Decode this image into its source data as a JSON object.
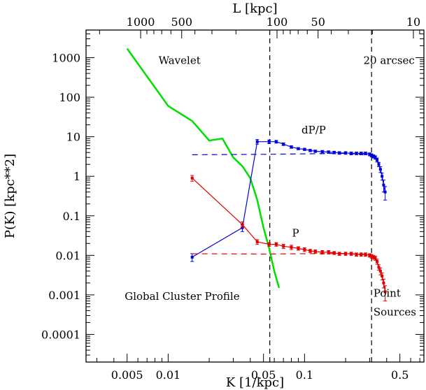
{
  "chart_data": {
    "type": "line",
    "xlabel": "K [1/kpc]",
    "ylabel": "P(K) [kpc**2]",
    "top_xlabel": "L [kpc]",
    "x_scale": "log",
    "y_scale": "log",
    "xlim": [
      0.0025,
      0.75
    ],
    "ylim": [
      2e-05,
      5000
    ],
    "x_ticks": [
      0.005,
      0.01,
      0.05,
      0.1,
      0.5
    ],
    "x_tick_labels": [
      "0.005",
      "0.01",
      "0.05",
      "0.1",
      "0.5"
    ],
    "y_ticks": [
      0.0001,
      0.001,
      0.01,
      0.1,
      1,
      10,
      100,
      1000
    ],
    "y_tick_labels": [
      "0.0001",
      "0.001",
      "0.01",
      "0.1",
      "1",
      "10",
      "100",
      "1000"
    ],
    "top_ticks": [
      1000,
      500,
      100,
      50,
      10
    ],
    "top_tick_labels": [
      "1000",
      "500",
      "100",
      "50",
      "10"
    ],
    "vlines": [
      0.0556,
      0.31
    ],
    "annotations": [
      {
        "text": "Wavelet",
        "x": 0.0085,
        "y": 700
      },
      {
        "text": "20 arcsec",
        "x": 0.27,
        "y": 700
      },
      {
        "text": "dP/P",
        "x": 0.095,
        "y": 12
      },
      {
        "text": "P",
        "x": 0.081,
        "y": 0.03
      },
      {
        "text": "Global Cluster Profile",
        "x": 0.0048,
        "y": 0.00075
      },
      {
        "text": "Point",
        "x": 0.32,
        "y": 0.0009
      },
      {
        "text": "Sources",
        "x": 0.32,
        "y": 0.0003
      }
    ],
    "series": [
      {
        "color": "#00e000",
        "style": "solid",
        "errorbars": false,
        "x": [
          0.005,
          0.01,
          0.015,
          0.02,
          0.025,
          0.03,
          0.035,
          0.04,
          0.045,
          0.05,
          0.055,
          0.06,
          0.065
        ],
        "y": [
          1700,
          60,
          25,
          8,
          9,
          3,
          1.8,
          0.9,
          0.25,
          0.05,
          0.015,
          0.004,
          0.0015
        ]
      },
      {
        "color": "#0000dd",
        "style": "solid",
        "errorbars": true,
        "x": [
          0.015,
          0.035,
          0.045,
          0.055,
          0.062,
          0.07,
          0.08,
          0.09,
          0.1,
          0.11,
          0.12,
          0.135,
          0.15,
          0.165,
          0.18,
          0.2,
          0.22,
          0.24,
          0.26,
          0.28,
          0.3,
          0.31,
          0.32,
          0.33,
          0.34,
          0.35,
          0.36,
          0.37,
          0.38,
          0.39
        ],
        "y": [
          0.009,
          0.05,
          7.5,
          7.5,
          7.5,
          6.5,
          5.5,
          5,
          4.8,
          4.5,
          4.3,
          4.2,
          4.1,
          4,
          3.9,
          3.9,
          3.8,
          3.8,
          3.8,
          3.8,
          3.6,
          3.4,
          3.2,
          3,
          2.6,
          2,
          1.5,
          1,
          0.6,
          0.4
        ],
        "err": [
          0.002,
          0.01,
          1,
          0.8,
          0.6,
          0.5,
          0.4,
          0.3,
          0.3,
          0.3,
          0.3,
          0.3,
          0.3,
          0.3,
          0.3,
          0.3,
          0.3,
          0.3,
          0.3,
          0.3,
          0.3,
          0.3,
          0.3,
          0.3,
          0.3,
          0.25,
          0.25,
          0.2,
          0.2,
          0.15
        ]
      },
      {
        "color": "#0000dd",
        "style": "dashed",
        "errorbars": false,
        "x": [
          0.015,
          0.05,
          0.1,
          0.2,
          0.3
        ],
        "y": [
          3.5,
          3.6,
          3.7,
          3.8,
          3.5
        ]
      },
      {
        "color": "#e00000",
        "style": "solid",
        "errorbars": true,
        "x": [
          0.015,
          0.035,
          0.045,
          0.055,
          0.062,
          0.07,
          0.08,
          0.09,
          0.1,
          0.11,
          0.12,
          0.135,
          0.15,
          0.165,
          0.18,
          0.2,
          0.22,
          0.24,
          0.26,
          0.28,
          0.3,
          0.31,
          0.32,
          0.33,
          0.34,
          0.35,
          0.36,
          0.37,
          0.38,
          0.39
        ],
        "y": [
          0.9,
          0.06,
          0.022,
          0.019,
          0.019,
          0.017,
          0.016,
          0.015,
          0.014,
          0.013,
          0.0125,
          0.012,
          0.012,
          0.0115,
          0.011,
          0.011,
          0.011,
          0.0105,
          0.0105,
          0.0105,
          0.01,
          0.0095,
          0.009,
          0.0085,
          0.007,
          0.005,
          0.004,
          0.003,
          0.002,
          0.0012
        ],
        "err": [
          0.15,
          0.01,
          0.003,
          0.002,
          0.002,
          0.002,
          0.002,
          0.0015,
          0.0015,
          0.0012,
          0.0012,
          0.0012,
          0.0012,
          0.001,
          0.001,
          0.001,
          0.001,
          0.001,
          0.001,
          0.001,
          0.001,
          0.001,
          0.001,
          0.001,
          0.001,
          0.0008,
          0.0008,
          0.0006,
          0.0005,
          0.0005
        ]
      },
      {
        "color": "#e00000",
        "style": "dashed",
        "errorbars": false,
        "x": [
          0.015,
          0.05,
          0.1,
          0.2,
          0.3
        ],
        "y": [
          0.011,
          0.0108,
          0.011,
          0.0112,
          0.0105
        ]
      }
    ]
  }
}
